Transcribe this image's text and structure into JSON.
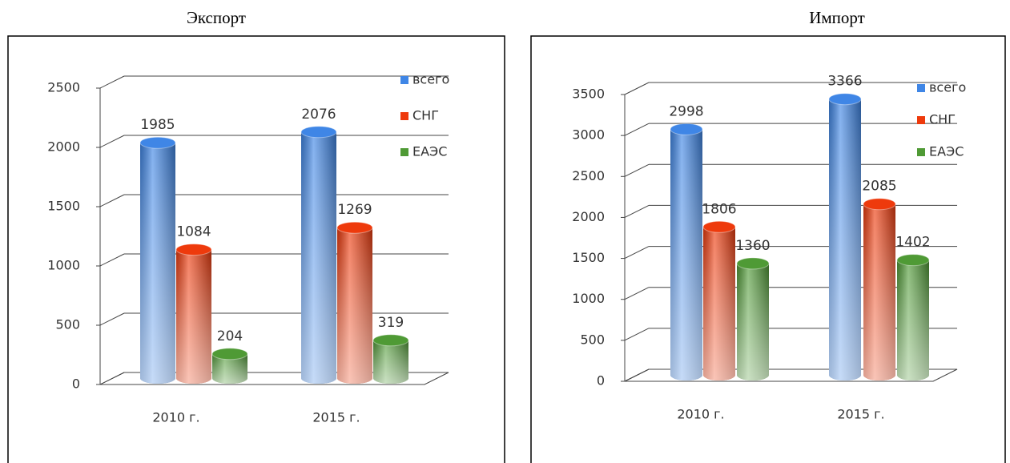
{
  "chart_data": [
    {
      "type": "bar",
      "title": "Экспорт",
      "categories": [
        "2010 г.",
        "2015 г."
      ],
      "series": [
        {
          "name": "всего",
          "color": "#3f86e6",
          "values": [
            1985,
            2076
          ]
        },
        {
          "name": "СНГ",
          "color": "#ee3a0c",
          "values": [
            1084,
            1269
          ]
        },
        {
          "name": "ЕАЭС",
          "color": "#4f9a35",
          "values": [
            204,
            319
          ]
        }
      ],
      "ylim": [
        0,
        2500
      ],
      "yticks": [
        0,
        500,
        1000,
        1500,
        2000,
        2500
      ],
      "grid": true,
      "legend": "top-right"
    },
    {
      "type": "bar",
      "title": "Импорт",
      "categories": [
        "2010 г.",
        "2015 г."
      ],
      "series": [
        {
          "name": "всего",
          "color": "#3f86e6",
          "values": [
            2998,
            3366
          ]
        },
        {
          "name": "СНГ",
          "color": "#ee3a0c",
          "values": [
            1806,
            2085
          ]
        },
        {
          "name": "ЕАЭС",
          "color": "#4f9a35",
          "values": [
            1360,
            1402
          ]
        }
      ],
      "ylim": [
        0,
        3500
      ],
      "yticks": [
        0,
        500,
        1000,
        1500,
        2000,
        2500,
        3000,
        3500
      ],
      "grid": true,
      "legend": "top-right"
    }
  ]
}
